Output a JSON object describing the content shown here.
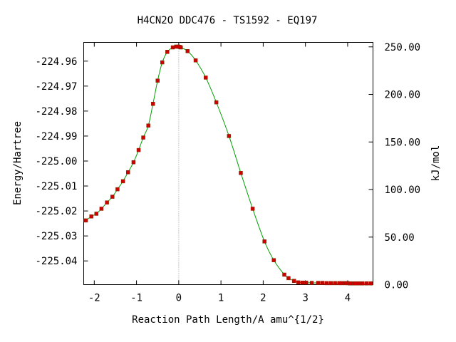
{
  "chart_data": {
    "type": "line",
    "title": "H4CN2O   DDC476 - TS1592 - EQ197",
    "xlabel": "Reaction Path Length/A amu^{1/2}",
    "ylabel": "Energy/Hartree",
    "y2label": "kJ/mol",
    "xlim": [
      -2.25,
      4.6
    ],
    "ylim": [
      -225.0495,
      -224.9525
    ],
    "y2lim": [
      0.0,
      254.7
    ],
    "x_ticks": [
      "-2",
      "-1",
      "0",
      "1",
      "2",
      "3",
      "4"
    ],
    "x_tick_values": [
      -2,
      -1,
      0,
      1,
      2,
      3,
      4
    ],
    "y_ticks": [
      "-224.96",
      "-224.97",
      "-224.98",
      "-224.99",
      "-225.00",
      "-225.01",
      "-225.02",
      "-225.03",
      "-225.04"
    ],
    "y_tick_values": [
      -224.96,
      -224.97,
      -224.98,
      -224.99,
      -225.0,
      -225.01,
      -225.02,
      -225.03,
      -225.04
    ],
    "y2_ticks": [
      "250.00",
      "200.00",
      "150.00",
      "100.00",
      "50.00",
      "0.00"
    ],
    "y2_tick_values": [
      250,
      200,
      150,
      100,
      50,
      0
    ],
    "grid": false,
    "ts_line_x": 0,
    "series": [
      {
        "line_color": "#00a000",
        "marker_color": "#cc0000",
        "x": [
          -2.2,
          -2.07,
          -1.95,
          -1.83,
          -1.7,
          -1.57,
          -1.45,
          -1.32,
          -1.2,
          -1.07,
          -0.95,
          -0.84,
          -0.72,
          -0.61,
          -0.5,
          -0.39,
          -0.27,
          -0.14,
          -0.06,
          -0.01,
          0.02,
          0.05,
          0.21,
          0.4,
          0.64,
          0.89,
          1.19,
          1.47,
          1.75,
          2.03,
          2.25,
          2.5,
          2.6,
          2.73,
          2.83,
          2.93,
          3.02,
          3.15,
          3.3,
          3.4,
          3.5,
          3.6,
          3.7,
          3.8,
          3.87,
          3.95,
          4.0,
          4.05,
          4.1,
          4.15,
          4.2,
          4.27,
          4.35,
          4.45,
          4.55
        ],
        "y": [
          -225.0238,
          -225.0222,
          -225.0211,
          -225.0191,
          -225.0166,
          -225.0143,
          -225.0113,
          -225.0081,
          -225.0045,
          -225.0005,
          -224.9956,
          -224.9906,
          -224.9858,
          -224.9771,
          -224.9678,
          -224.9605,
          -224.9563,
          -224.9545,
          -224.9542,
          -224.9542,
          -224.9543,
          -224.9545,
          -224.956,
          -224.9597,
          -224.9666,
          -224.9765,
          -224.99,
          -225.0048,
          -225.0191,
          -225.0322,
          -225.0397,
          -225.0455,
          -225.0469,
          -225.048,
          -225.0486,
          -225.0487,
          -225.0487,
          -225.0488,
          -225.0488,
          -225.0488,
          -225.0489,
          -225.0489,
          -225.0489,
          -225.0489,
          -225.0489,
          -225.0489,
          -225.0489,
          -225.049,
          -225.049,
          -225.049,
          -225.049,
          -225.049,
          -225.049,
          -225.049,
          -225.049
        ]
      }
    ]
  }
}
